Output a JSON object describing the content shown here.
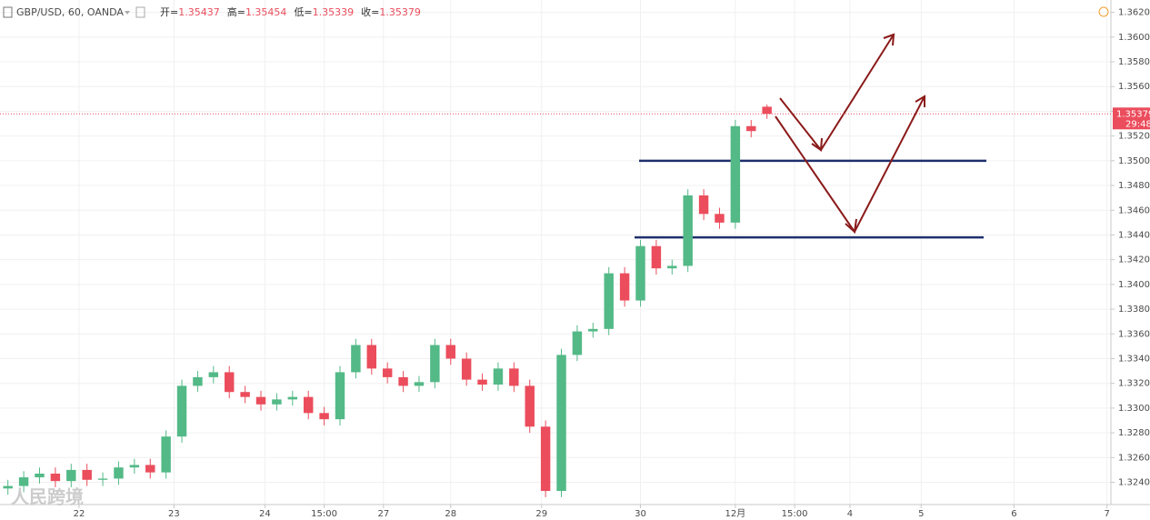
{
  "chart_data": {
    "type": "candlestick",
    "title": "GBP/USD, 60, OANDA",
    "ohlc_labels": [
      "开=",
      "高=",
      "低=",
      "收="
    ],
    "ohlc_values": [
      1.35437,
      1.35454,
      1.35339,
      1.35379
    ],
    "last_price": 1.35379,
    "countdown": "29:48",
    "watermark": "人民跨境",
    "up_color": "#53b987",
    "down_color": "#eb4d5c",
    "levels": [
      1.35,
      1.3438
    ],
    "level_color": "#1f2f6b",
    "xlim": [
      0,
      281
    ],
    "xticks": [
      {
        "value": 20,
        "label": "22"
      },
      {
        "value": 44,
        "label": "23"
      },
      {
        "value": 67,
        "label": "24"
      },
      {
        "value": 82,
        "label": "15:00"
      },
      {
        "value": 97,
        "label": "27"
      },
      {
        "value": 114,
        "label": "28"
      },
      {
        "value": 137,
        "label": "29"
      },
      {
        "value": 162,
        "label": "30"
      },
      {
        "value": 186,
        "label": "12月"
      },
      {
        "value": 201,
        "label": "15:00"
      },
      {
        "value": 215,
        "label": "4"
      },
      {
        "value": 233,
        "label": "5"
      },
      {
        "value": 256.5,
        "label": "6"
      },
      {
        "value": 280,
        "label": "7"
      }
    ],
    "ylim": [
      1.3222,
      1.363
    ],
    "yticks": [
      {
        "value": 1.324,
        "label": "1.32400"
      },
      {
        "value": 1.326,
        "label": "1.32600"
      },
      {
        "value": 1.328,
        "label": "1.32800"
      },
      {
        "value": 1.33,
        "label": "1.33000"
      },
      {
        "value": 1.332,
        "label": "1.33200"
      },
      {
        "value": 1.334,
        "label": "1.33400"
      },
      {
        "value": 1.336,
        "label": "1.33600"
      },
      {
        "value": 1.338,
        "label": "1.33800"
      },
      {
        "value": 1.34,
        "label": "1.34000"
      },
      {
        "value": 1.342,
        "label": "1.34200"
      },
      {
        "value": 1.344,
        "label": "1.34400"
      },
      {
        "value": 1.346,
        "label": "1.34600"
      },
      {
        "value": 1.348,
        "label": "1.34800"
      },
      {
        "value": 1.35,
        "label": "1.35000"
      },
      {
        "value": 1.352,
        "label": "1.35200"
      },
      {
        "value": 1.354,
        "label": "1.35400"
      },
      {
        "value": 1.356,
        "label": "1.35600"
      },
      {
        "value": 1.358,
        "label": "1.35800"
      },
      {
        "value": 1.36,
        "label": "1.36000"
      },
      {
        "value": 1.362,
        "label": "1.36200"
      }
    ],
    "grid": true,
    "x": [
      2,
      6,
      10,
      14,
      18,
      22,
      26,
      30,
      34,
      38,
      42,
      46,
      50,
      54,
      58,
      62,
      66,
      70,
      74,
      78,
      82,
      86,
      90,
      94,
      98,
      102,
      106,
      110,
      114,
      118,
      122,
      126,
      130,
      134,
      138,
      142,
      146,
      150,
      154,
      158,
      162,
      166,
      170,
      174,
      178,
      182,
      186,
      190,
      194
    ],
    "open": [
      1.3235,
      1.3237,
      1.3244,
      1.3247,
      1.3241,
      1.325,
      1.3242,
      1.3243,
      1.3252,
      1.3254,
      1.3248,
      1.3277,
      1.3318,
      1.3325,
      1.3329,
      1.3313,
      1.3309,
      1.3303,
      1.3307,
      1.3309,
      1.3296,
      1.3291,
      1.3329,
      1.3351,
      1.3332,
      1.3325,
      1.3318,
      1.3321,
      1.3351,
      1.334,
      1.3323,
      1.3319,
      1.3332,
      1.3318,
      1.3285,
      1.3233,
      1.3343,
      1.3362,
      1.3364,
      1.3409,
      1.3387,
      1.3431,
      1.3413,
      1.3415,
      1.3472,
      1.3457,
      1.345,
      1.3528,
      1.35437
    ],
    "high": [
      1.3242,
      1.3249,
      1.3252,
      1.3252,
      1.3255,
      1.3255,
      1.3248,
      1.3257,
      1.3259,
      1.3259,
      1.3282,
      1.3323,
      1.333,
      1.3334,
      1.3334,
      1.3318,
      1.3314,
      1.3312,
      1.3314,
      1.3314,
      1.3301,
      1.3334,
      1.3356,
      1.3356,
      1.3337,
      1.333,
      1.3326,
      1.3356,
      1.3356,
      1.3345,
      1.3328,
      1.3337,
      1.3337,
      1.3323,
      1.329,
      1.3348,
      1.3367,
      1.3369,
      1.3414,
      1.3414,
      1.3436,
      1.3436,
      1.342,
      1.3477,
      1.3477,
      1.3462,
      1.3533,
      1.3533,
      1.35454
    ],
    "low": [
      1.323,
      1.3232,
      1.3239,
      1.3236,
      1.3236,
      1.3237,
      1.3237,
      1.3238,
      1.3247,
      1.3243,
      1.3243,
      1.3272,
      1.3313,
      1.332,
      1.3308,
      1.3304,
      1.3298,
      1.3298,
      1.3302,
      1.3291,
      1.3286,
      1.3286,
      1.3324,
      1.3327,
      1.332,
      1.3313,
      1.3313,
      1.3316,
      1.3335,
      1.3318,
      1.3314,
      1.3314,
      1.3313,
      1.328,
      1.3228,
      1.3228,
      1.3338,
      1.3357,
      1.3359,
      1.3382,
      1.3382,
      1.3408,
      1.3408,
      1.341,
      1.3452,
      1.3445,
      1.3445,
      1.3519,
      1.35339
    ],
    "close": [
      1.3237,
      1.3244,
      1.3247,
      1.3241,
      1.325,
      1.3242,
      1.3243,
      1.3252,
      1.3254,
      1.3248,
      1.3277,
      1.3318,
      1.3325,
      1.3329,
      1.3313,
      1.3309,
      1.3303,
      1.3307,
      1.3309,
      1.3296,
      1.3291,
      1.3329,
      1.3351,
      1.3332,
      1.3325,
      1.3318,
      1.3321,
      1.3351,
      1.334,
      1.3323,
      1.3319,
      1.3332,
      1.3318,
      1.3285,
      1.3233,
      1.3343,
      1.3362,
      1.3364,
      1.3409,
      1.3387,
      1.3431,
      1.3413,
      1.3415,
      1.3472,
      1.3457,
      1.345,
      1.3528,
      1.3524,
      1.35379
    ]
  }
}
